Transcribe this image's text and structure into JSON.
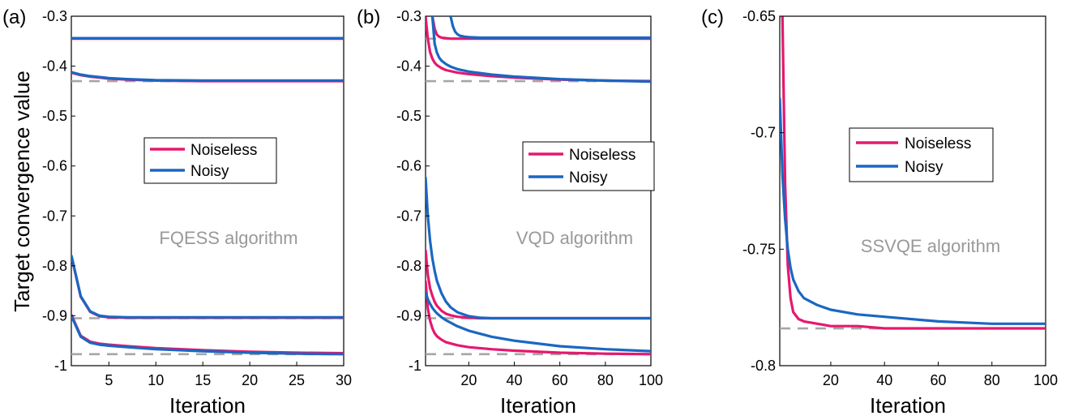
{
  "figure": {
    "ylabel": "Target convergence value",
    "legend_entries": [
      "Noiseless",
      "Noisy"
    ]
  },
  "colors": {
    "noiseless": "#e6186e",
    "noisy": "#1a67c2",
    "reference": "#a6a6a6"
  },
  "chart_data": [
    {
      "type": "line",
      "panel_label": "(a)",
      "annotation": "FQESS algorithm",
      "xlabel": "Iteration",
      "xlim": [
        1,
        30
      ],
      "ylim": [
        -1,
        -0.3
      ],
      "xticks": [
        5,
        10,
        15,
        20,
        25,
        30
      ],
      "yticks": [
        -1,
        -0.9,
        -0.8,
        -0.7,
        -0.6,
        -0.5,
        -0.4,
        -0.3
      ],
      "ytick_labels": [
        "-1",
        "-0.9",
        "-0.8",
        "-0.7",
        "-0.6",
        "-0.5",
        "-0.4",
        "-0.3"
      ],
      "grid": false,
      "legend_placement": "center",
      "reference_levels": [
        -0.345,
        -0.43,
        -0.905,
        -0.977
      ],
      "series": [
        {
          "name": "Noiseless",
          "group": "noiseless",
          "x": [
            1,
            30
          ],
          "y": [
            -0.345,
            -0.345
          ]
        },
        {
          "name": "Noiseless",
          "group": "noiseless",
          "x": [
            1,
            2,
            3,
            4,
            5,
            7,
            10,
            15,
            20,
            25,
            30
          ],
          "y": [
            -0.413,
            -0.418,
            -0.421,
            -0.423,
            -0.425,
            -0.427,
            -0.429,
            -0.43,
            -0.43,
            -0.43,
            -0.43
          ]
        },
        {
          "name": "Noiseless",
          "group": "noiseless",
          "x": [
            1,
            2,
            3,
            4,
            5,
            7,
            10,
            15,
            20,
            25,
            30
          ],
          "y": [
            -0.78,
            -0.862,
            -0.892,
            -0.901,
            -0.903,
            -0.904,
            -0.904,
            -0.904,
            -0.904,
            -0.904,
            -0.904
          ]
        },
        {
          "name": "Noiseless",
          "group": "noiseless",
          "x": [
            1,
            2,
            3,
            4,
            5,
            7,
            10,
            15,
            20,
            25,
            30
          ],
          "y": [
            -0.898,
            -0.94,
            -0.952,
            -0.956,
            -0.958,
            -0.961,
            -0.965,
            -0.969,
            -0.972,
            -0.974,
            -0.975
          ]
        },
        {
          "name": "Noisy",
          "group": "noisy",
          "x": [
            1,
            30
          ],
          "y": [
            -0.344,
            -0.344
          ]
        },
        {
          "name": "Noisy",
          "group": "noisy",
          "x": [
            1,
            2,
            3,
            4,
            5,
            7,
            10,
            15,
            20,
            25,
            30
          ],
          "y": [
            -0.412,
            -0.417,
            -0.42,
            -0.422,
            -0.424,
            -0.426,
            -0.428,
            -0.429,
            -0.429,
            -0.429,
            -0.429
          ]
        },
        {
          "name": "Noisy",
          "group": "noisy",
          "x": [
            1,
            2,
            3,
            4,
            5,
            7,
            10,
            15,
            20,
            25,
            30
          ],
          "y": [
            -0.779,
            -0.861,
            -0.891,
            -0.9,
            -0.902,
            -0.903,
            -0.903,
            -0.903,
            -0.903,
            -0.903,
            -0.903
          ]
        },
        {
          "name": "Noisy",
          "group": "noisy",
          "x": [
            1,
            2,
            3,
            4,
            5,
            7,
            10,
            15,
            20,
            25,
            30
          ],
          "y": [
            -0.9,
            -0.942,
            -0.954,
            -0.958,
            -0.96,
            -0.963,
            -0.967,
            -0.971,
            -0.974,
            -0.976,
            -0.977
          ]
        }
      ]
    },
    {
      "type": "line",
      "panel_label": "(b)",
      "annotation": "VQD algorithm",
      "xlabel": "Iteration",
      "xlim": [
        1,
        100
      ],
      "ylim": [
        -1,
        -0.3
      ],
      "xticks": [
        20,
        40,
        60,
        80,
        100
      ],
      "yticks": [
        -1,
        -0.9,
        -0.8,
        -0.7,
        -0.6,
        -0.5,
        -0.4,
        -0.3
      ],
      "ytick_labels": [
        "-1",
        "-0.9",
        "-0.8",
        "-0.7",
        "-0.6",
        "-0.5",
        "-0.4",
        "-0.3"
      ],
      "grid": false,
      "legend_placement": "center",
      "reference_levels": [
        -0.345,
        -0.43,
        -0.905,
        -0.977
      ],
      "series": [
        {
          "name": "Noiseless",
          "group": "noiseless",
          "x": [
            4,
            5,
            6,
            7,
            8,
            10,
            12,
            15,
            20,
            30,
            100
          ],
          "y": [
            -0.3,
            -0.325,
            -0.337,
            -0.341,
            -0.343,
            -0.344,
            -0.345,
            -0.345,
            -0.345,
            -0.345,
            -0.345
          ]
        },
        {
          "name": "Noiseless",
          "group": "noiseless",
          "x": [
            1,
            2,
            3,
            4,
            5,
            6,
            8,
            10,
            15,
            20,
            30,
            40,
            60,
            80,
            100
          ],
          "y": [
            -0.3,
            -0.345,
            -0.372,
            -0.385,
            -0.393,
            -0.398,
            -0.404,
            -0.408,
            -0.413,
            -0.416,
            -0.42,
            -0.423,
            -0.427,
            -0.429,
            -0.43
          ]
        },
        {
          "name": "Noiseless",
          "group": "noiseless",
          "x": [
            1,
            2,
            3,
            4,
            5,
            6,
            8,
            10,
            12,
            15,
            20,
            25,
            30,
            100
          ],
          "y": [
            -0.768,
            -0.818,
            -0.845,
            -0.86,
            -0.872,
            -0.88,
            -0.89,
            -0.896,
            -0.899,
            -0.902,
            -0.904,
            -0.905,
            -0.905,
            -0.905
          ]
        },
        {
          "name": "Noiseless",
          "group": "noiseless",
          "x": [
            1,
            2,
            3,
            4,
            5,
            6,
            8,
            10,
            15,
            20,
            30,
            40,
            60,
            80,
            100
          ],
          "y": [
            -0.83,
            -0.885,
            -0.91,
            -0.925,
            -0.935,
            -0.941,
            -0.948,
            -0.953,
            -0.959,
            -0.963,
            -0.967,
            -0.97,
            -0.974,
            -0.976,
            -0.977
          ]
        },
        {
          "name": "Noisy",
          "group": "noisy",
          "x": [
            12,
            13,
            14,
            15,
            16,
            18,
            20,
            25,
            30,
            100
          ],
          "y": [
            -0.3,
            -0.32,
            -0.331,
            -0.336,
            -0.339,
            -0.341,
            -0.342,
            -0.343,
            -0.343,
            -0.343
          ]
        },
        {
          "name": "Noisy",
          "group": "noisy",
          "x": [
            4,
            5,
            6,
            7,
            8,
            10,
            12,
            15,
            20,
            30,
            40,
            60,
            80,
            100
          ],
          "y": [
            -0.3,
            -0.355,
            -0.373,
            -0.383,
            -0.389,
            -0.396,
            -0.401,
            -0.406,
            -0.411,
            -0.417,
            -0.421,
            -0.426,
            -0.429,
            -0.431
          ]
        },
        {
          "name": "Noisy",
          "group": "noisy",
          "x": [
            1,
            2,
            3,
            4,
            5,
            6,
            8,
            10,
            12,
            15,
            20,
            25,
            30,
            40,
            100
          ],
          "y": [
            -0.622,
            -0.7,
            -0.75,
            -0.785,
            -0.81,
            -0.83,
            -0.855,
            -0.872,
            -0.883,
            -0.893,
            -0.901,
            -0.904,
            -0.905,
            -0.905,
            -0.905
          ]
        },
        {
          "name": "Noisy",
          "group": "noisy",
          "x": [
            1,
            2,
            3,
            4,
            5,
            6,
            8,
            10,
            15,
            20,
            30,
            40,
            60,
            80,
            100
          ],
          "y": [
            -0.853,
            -0.867,
            -0.876,
            -0.884,
            -0.89,
            -0.895,
            -0.903,
            -0.909,
            -0.921,
            -0.93,
            -0.942,
            -0.95,
            -0.961,
            -0.967,
            -0.971
          ]
        }
      ]
    },
    {
      "type": "line",
      "panel_label": "(c)",
      "annotation": "SSVQE algorithm",
      "xlabel": "Iteration",
      "xlim": [
        1,
        100
      ],
      "ylim": [
        -0.8,
        -0.65
      ],
      "xticks": [
        20,
        40,
        60,
        80,
        100
      ],
      "yticks": [
        -0.8,
        -0.75,
        -0.7,
        -0.65
      ],
      "ytick_labels": [
        "-0.8",
        "-0.75",
        "-0.7",
        "-0.65"
      ],
      "grid": false,
      "legend_placement": "upper-center",
      "reference_levels": [
        -0.784
      ],
      "series": [
        {
          "name": "Noiseless",
          "group": "noiseless",
          "x": [
            2,
            3,
            4,
            5,
            6,
            8,
            10,
            15,
            20,
            30,
            40,
            60,
            80,
            100
          ],
          "y": [
            -0.65,
            -0.722,
            -0.757,
            -0.771,
            -0.777,
            -0.78,
            -0.781,
            -0.782,
            -0.783,
            -0.783,
            -0.784,
            -0.784,
            -0.784,
            -0.784
          ]
        },
        {
          "name": "Noisy",
          "group": "noisy",
          "x": [
            1,
            2,
            3,
            4,
            5,
            6,
            8,
            10,
            15,
            20,
            30,
            40,
            60,
            80,
            100
          ],
          "y": [
            -0.685,
            -0.718,
            -0.737,
            -0.75,
            -0.758,
            -0.763,
            -0.768,
            -0.771,
            -0.774,
            -0.776,
            -0.778,
            -0.779,
            -0.781,
            -0.782,
            -0.782
          ]
        }
      ]
    }
  ]
}
